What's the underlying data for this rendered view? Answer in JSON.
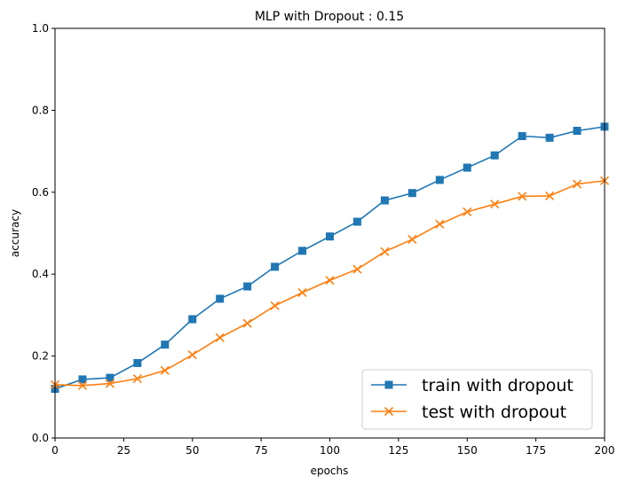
{
  "chart_data": {
    "type": "line",
    "title": "MLP with Dropout : 0.15",
    "xlabel": "epochs",
    "ylabel": "accuracy",
    "xlim": [
      0,
      200
    ],
    "ylim": [
      0.0,
      1.0
    ],
    "xticks": [
      "0",
      "25",
      "50",
      "75",
      "100",
      "125",
      "150",
      "175",
      "200"
    ],
    "yticks": [
      "0.0",
      "0.2",
      "0.4",
      "0.6",
      "0.8",
      "1.0"
    ],
    "legend_position": "lower-right",
    "x": [
      0,
      10,
      20,
      30,
      40,
      50,
      60,
      70,
      80,
      90,
      100,
      110,
      120,
      130,
      140,
      150,
      160,
      170,
      180,
      190,
      200
    ],
    "series": [
      {
        "name": "train with dropout",
        "color": "#1f77b4",
        "marker": "square",
        "values": [
          0.12,
          0.143,
          0.147,
          0.183,
          0.228,
          0.29,
          0.34,
          0.37,
          0.418,
          0.457,
          0.492,
          0.528,
          0.58,
          0.598,
          0.63,
          0.66,
          0.69,
          0.737,
          0.733,
          0.75,
          0.76
        ]
      },
      {
        "name": "test with dropout",
        "color": "#ff7f0e",
        "marker": "x",
        "values": [
          0.13,
          0.128,
          0.133,
          0.145,
          0.165,
          0.203,
          0.245,
          0.28,
          0.323,
          0.355,
          0.385,
          0.412,
          0.455,
          0.485,
          0.522,
          0.552,
          0.571,
          0.59,
          0.591,
          0.62,
          0.628
        ]
      }
    ]
  }
}
